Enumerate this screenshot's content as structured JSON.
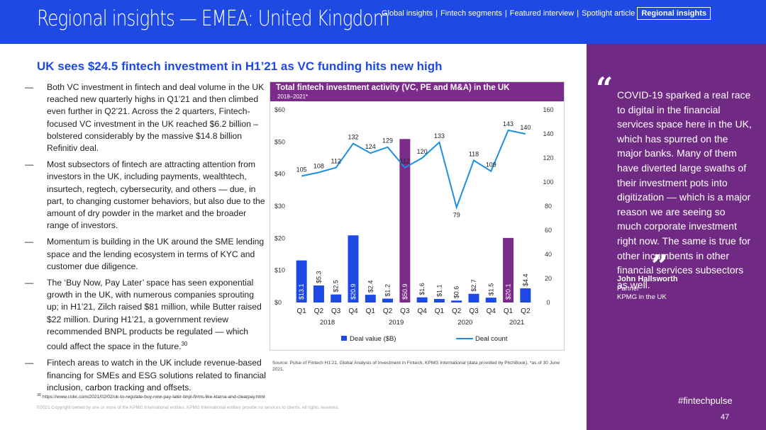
{
  "header": {
    "title": "Regional insights — EMEA: United Kingdom",
    "nav": [
      {
        "label": "Global insights",
        "active": false
      },
      {
        "label": "Fintech segments",
        "active": false
      },
      {
        "label": "Featured interview",
        "active": false
      },
      {
        "label": "Spotlight article",
        "active": false
      },
      {
        "label": "Regional insights",
        "active": true
      }
    ],
    "separator": "|"
  },
  "headline": "UK sees $24.5 fintech investment in H1’21 as VC funding hits new high",
  "bullets": [
    {
      "dash": "—",
      "text": "Both VC investment in fintech and deal volume in the UK reached new quarterly highs in Q1’21 and then climbed even further in Q2’21. Across the 2 quarters, Fintech-focused VC investment in the UK reached $6.2 billion – bolstered considerably by the massive $14.8 billion Refinitiv deal.",
      "sup": ""
    },
    {
      "dash": "—",
      "text": "Most subsectors of fintech are attracting attention from investors in the UK, including payments, wealthtech, insurtech, regtech, cybersecurity, and others — due, in part, to changing customer behaviors, but also due to the amount of dry powder in the market and the broader range of investors.",
      "sup": ""
    },
    {
      "dash": "—",
      "text": "Momentum is building in the UK around the SME lending space and the lending ecosystem in terms of KYC and customer due diligence.",
      "sup": ""
    },
    {
      "dash": "—",
      "text": "The ‘Buy Now, Pay Later’ space has seen exponential growth in the UK, with numerous companies sprouting up; in H1’21, Zilch raised $81 million, while Butter raised $22 million. During H1’21, a government review recommended BNPL products be regulated — which could affect the space in the future.",
      "sup": "30"
    },
    {
      "dash": "—",
      "text": "Fintech areas to watch in the UK include revenue-based financing for SMEs and ESG solutions related to financial inclusion, carbon tracking and offsets.",
      "sup": ""
    }
  ],
  "chart_box": {
    "title": "Total fintech investment activity (VC, PE and M&A) in the UK",
    "subtitle": "2018–2021*"
  },
  "chart_data": {
    "type": "bar",
    "title": "Total fintech investment activity (VC, PE and M&A) in the UK",
    "subtitle": "2018–2021*",
    "categories": [
      "Q1",
      "Q2",
      "Q3",
      "Q4",
      "Q1",
      "Q2",
      "Q3",
      "Q4",
      "Q1",
      "Q2",
      "Q3",
      "Q4",
      "Q1",
      "Q2"
    ],
    "years": [
      {
        "label": "2018",
        "start": 0,
        "end": 3
      },
      {
        "label": "2019",
        "start": 4,
        "end": 7
      },
      {
        "label": "2020",
        "start": 8,
        "end": 11
      },
      {
        "label": "2021",
        "start": 12,
        "end": 13
      }
    ],
    "series": [
      {
        "name": "Deal value ($B)",
        "kind": "bar",
        "axis": "left",
        "values": [
          13.1,
          5.3,
          2.5,
          20.9,
          2.4,
          1.2,
          50.9,
          1.6,
          1.1,
          0.6,
          2.7,
          1.5,
          20.1,
          4.4
        ],
        "labels": [
          "$13.1",
          "$5.3",
          "$2.5",
          "$20.9",
          "$2.4",
          "$1.2",
          "$50.9",
          "$1.6",
          "$1.1",
          "$0.6",
          "$2.7",
          "$1.5",
          "$20.1",
          "$4.4"
        ],
        "highlight": [
          6,
          12
        ],
        "colors": {
          "normal": "#1e49e2",
          "highlight": "#7b2c8a"
        }
      },
      {
        "name": "Deal count",
        "kind": "line",
        "axis": "right",
        "color": "#1e8fe0",
        "values": [
          105,
          108,
          112,
          132,
          124,
          129,
          112,
          120,
          133,
          79,
          118,
          109,
          143,
          140
        ],
        "labels": [
          "105",
          "108",
          "112",
          "132",
          "124",
          "129",
          "112",
          "120",
          "133",
          "79",
          "118",
          "109",
          "143",
          "140"
        ]
      }
    ],
    "y_left": {
      "min": 0,
      "max": 60,
      "ticks": [
        "$0",
        "$10",
        "$20",
        "$30",
        "$40",
        "$50",
        "$60"
      ]
    },
    "y_right": {
      "min": 0,
      "max": 160,
      "ticks": [
        "0",
        "20",
        "40",
        "60",
        "80",
        "100",
        "120",
        "140",
        "160"
      ]
    },
    "legend": [
      "Deal value ($B)",
      "Deal count"
    ],
    "legend_position": "bottom"
  },
  "source": "Source: Pulse of Fintech H1’21, Global Analysis of Investment in Fintech, KPMG International (data provided by PitchBook), *as of 30 June 2021.",
  "footnote": {
    "sup": "30",
    "text": "https://www.cnbc.com/2021/02/02/uk-to-regulate-buy-now-pay-later-bnpl-firms-like-klarna-and-clearpay.html"
  },
  "copyright": "©2021 Copyright owned by one or more of the KPMG International entities. KPMG International entities provide no services to clients. All rights reserved.",
  "quote": {
    "open": "“",
    "close": "”",
    "text": "COVID-19 sparked a real race to digital in the financial services space here in the UK, which has spurred on the major banks. Many of them have diverted large swaths of their investment pots into digitization — which is a major reason we are seeing so much corporate investment right now. The same is true for other incumbents in other financial services subsectors as well.",
    "author": "John Hallsworth",
    "role": "Partner",
    "org": "KPMG in the UK"
  },
  "hashtag": "#fintechpulse",
  "page_number": "47",
  "colors": {
    "brand_blue": "#1e49e2",
    "purple": "#712a83",
    "chart_purple": "#7b2c8a",
    "line_blue": "#1e8fe0"
  }
}
